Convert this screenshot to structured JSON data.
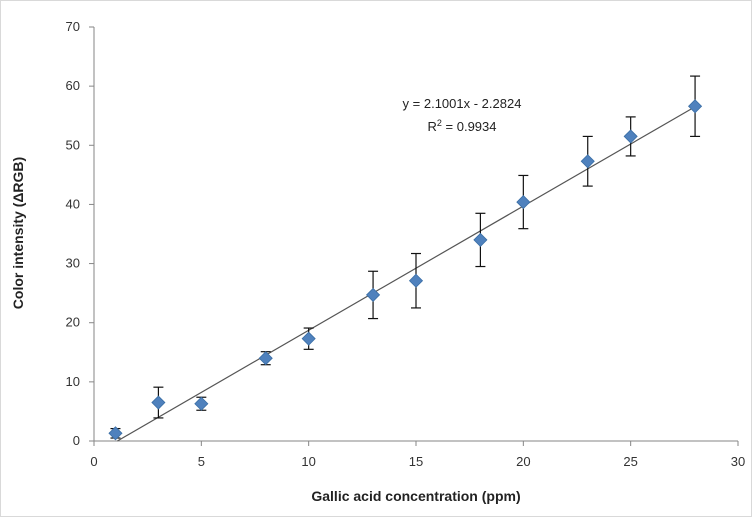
{
  "chart_data": {
    "type": "scatter",
    "title": "",
    "xlabel": "Gallic acid concentration (ppm)",
    "ylabel": "Color intensity (ΔRGB)",
    "xlim": [
      0,
      30
    ],
    "ylim": [
      0,
      70
    ],
    "x_ticks": [
      0,
      5,
      10,
      15,
      20,
      25,
      30
    ],
    "y_ticks": [
      0,
      10,
      20,
      30,
      40,
      50,
      60,
      70
    ],
    "grid": false,
    "legend": "none",
    "marker_color": "#4f81bd",
    "trendline_color": "#555555",
    "series": [
      {
        "x": [
          1,
          3,
          5,
          8,
          10,
          13,
          15,
          18,
          20,
          23,
          25,
          28
        ],
        "y": [
          1.3,
          6.5,
          6.3,
          14.0,
          17.3,
          24.7,
          27.1,
          34.0,
          40.4,
          47.3,
          51.5,
          56.6
        ],
        "error": [
          0.8,
          2.6,
          1.1,
          1.1,
          1.8,
          4.0,
          4.6,
          4.5,
          4.5,
          4.2,
          3.3,
          5.1
        ]
      }
    ],
    "trendline": {
      "slope": 2.1001,
      "intercept": -2.2824,
      "x_range": [
        1.09,
        28
      ]
    },
    "annotations": {
      "equation": "y = 2.1001x - 2.2824",
      "r2_prefix": "R",
      "r2_exponent": "2",
      "r2_value": " = 0.9934"
    }
  }
}
